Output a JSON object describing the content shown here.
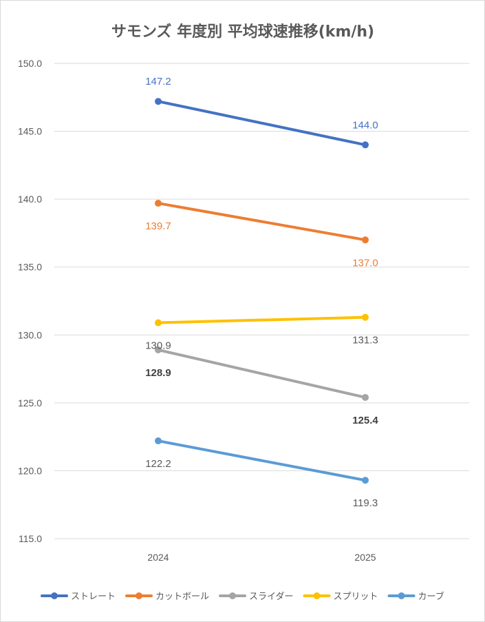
{
  "chart_data": {
    "type": "line",
    "title": "サモンズ 年度別 平均球速推移(km/h)",
    "categories": [
      "2024",
      "2025"
    ],
    "ylim": [
      115,
      150
    ],
    "yticks": [
      "150.0",
      "145.0",
      "140.0",
      "135.0",
      "130.0",
      "125.0",
      "120.0",
      "115.0"
    ],
    "grid": true,
    "legend_position": "bottom",
    "series": [
      {
        "name": "ストレート",
        "color": "#4472c4",
        "values": [
          147.2,
          144.0
        ],
        "labels": [
          "147.2",
          "144.0"
        ],
        "label_color": "#4472c4",
        "label_bold": false
      },
      {
        "name": "カットボール",
        "color": "#ed7d31",
        "values": [
          139.7,
          137.0
        ],
        "labels": [
          "139.7",
          "137.0"
        ],
        "label_color": "#ed7d31",
        "label_bold": false
      },
      {
        "name": "スライダー",
        "color": "#a5a5a5",
        "values": [
          128.9,
          125.4
        ],
        "labels": [
          "128.9",
          "125.4"
        ],
        "label_color": "#404040",
        "label_bold": true
      },
      {
        "name": "スプリット",
        "color": "#ffc000",
        "values": [
          130.9,
          131.3
        ],
        "labels": [
          "130.9",
          "131.3"
        ],
        "label_color": "#595959",
        "label_bold": false
      },
      {
        "name": "カーブ",
        "color": "#5b9bd5",
        "values": [
          122.2,
          119.3
        ],
        "labels": [
          "122.2",
          "119.3"
        ],
        "label_color": "#595959",
        "label_bold": false
      }
    ]
  }
}
